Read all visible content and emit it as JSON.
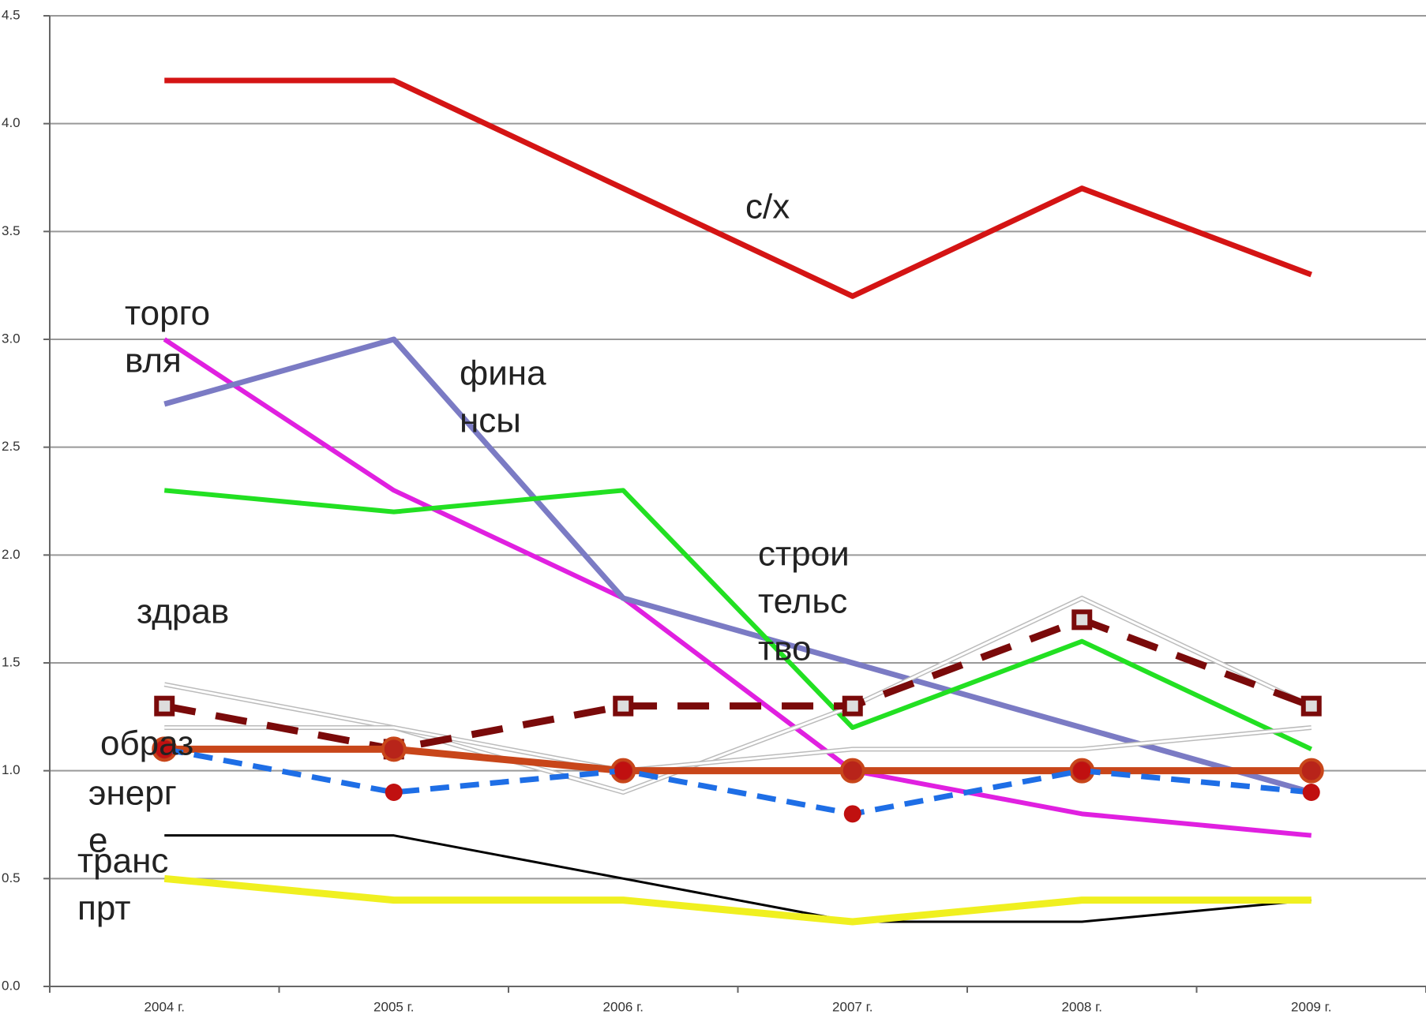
{
  "chart_data": {
    "type": "line",
    "categories": [
      "2004 г.",
      "2005 г.",
      "2006 г.",
      "2007 г.",
      "2008 г.",
      "2009 г."
    ],
    "ylim": [
      0,
      4.5
    ],
    "yticks": [
      {
        "value": 0,
        "label": "0.0"
      },
      0.5,
      {
        "value": 1,
        "label": "1.0"
      },
      1.5,
      {
        "value": 2,
        "label": "2.0"
      },
      2.5,
      {
        "value": 3,
        "label": "3.0"
      },
      3.5,
      {
        "value": 4,
        "label": "4.0"
      },
      4.5
    ],
    "grid": true,
    "series": [
      {
        "color": "#d41414",
        "values": [
          4.2,
          4.2,
          3.7,
          3.2,
          3.7,
          3.3
        ]
      },
      {
        "color": "#e020e0",
        "values": [
          3.0,
          2.3,
          1.8,
          1.0,
          0.8,
          0.7
        ]
      },
      {
        "color": "#7b7bc4",
        "values": [
          2.7,
          3.0,
          1.8,
          1.5,
          1.2,
          0.9
        ]
      },
      {
        "color": "#22e022",
        "values": [
          2.3,
          2.2,
          2.3,
          1.2,
          1.6,
          1.1
        ]
      },
      {
        "color": "#bbbbbb",
        "values": [
          1.4,
          1.2,
          0.9,
          1.3,
          1.8,
          1.3
        ]
      },
      {
        "color": "#bbbbbb",
        "values": [
          1.2,
          1.2,
          1.0,
          1.1,
          1.1,
          1.2
        ]
      },
      {
        "color": "#7a0a0a",
        "values": [
          1.3,
          1.1,
          1.3,
          1.3,
          1.7,
          1.3
        ]
      },
      {
        "color": "#c8461a",
        "values": [
          1.1,
          1.1,
          1.0,
          1.0,
          1.0,
          1.0
        ]
      },
      {
        "color": "#1e6ee6",
        "values": [
          1.1,
          0.9,
          1.0,
          0.8,
          1.0,
          0.9
        ]
      },
      {
        "color": "#000000",
        "values": [
          0.7,
          0.7,
          0.5,
          0.3,
          0.3,
          0.4
        ]
      },
      {
        "color": "#f0f020",
        "values": [
          0.5,
          0.4,
          0.4,
          0.3,
          0.4,
          0.4
        ]
      }
    ],
    "annotations": [
      [
        "с/х"
      ],
      [
        "торго",
        "вля"
      ],
      [
        "фина",
        "нсы"
      ],
      [
        "строи",
        "тельс",
        "тво"
      ],
      [
        "здрав"
      ],
      [
        "образ"
      ],
      [
        "энерг",
        "е"
      ],
      [
        "транс",
        "прт"
      ]
    ]
  }
}
